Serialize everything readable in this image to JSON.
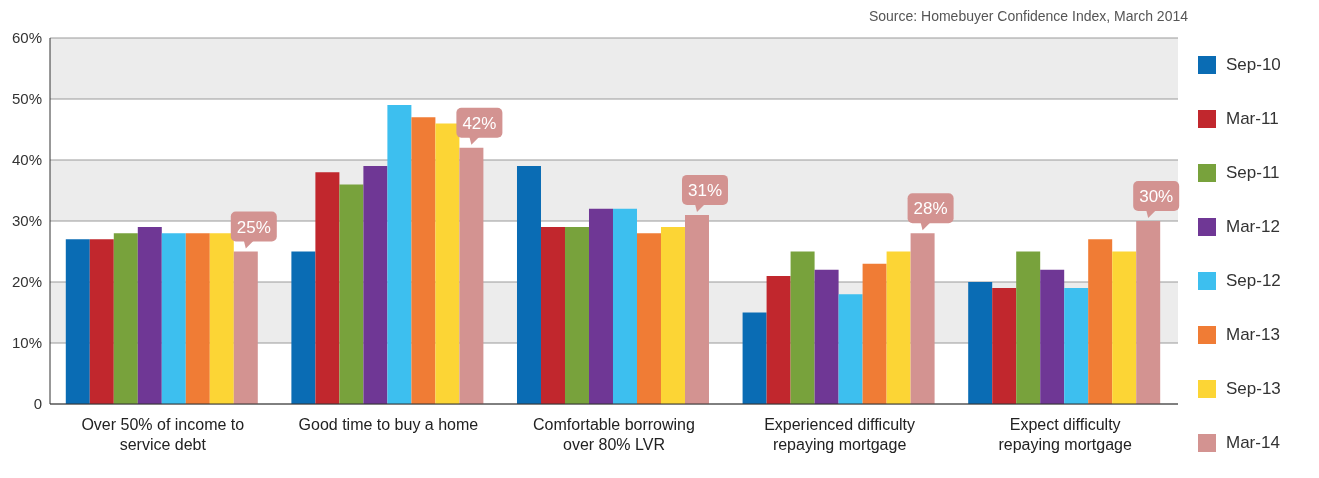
{
  "chart_data": {
    "type": "bar",
    "annotations": [
      "Source: Homebuyer Confidence Index, March 2014"
    ],
    "categories": [
      "Over 50% of income to service debt",
      "Good time to buy a home",
      "Comfortable borrowing over 80% LVR",
      "Experienced difficulty repaying mortgage",
      "Expect difficulty repaying mortgage"
    ],
    "series": [
      {
        "name": "Sep-10",
        "color": "#0a6cb4",
        "values": [
          27,
          25,
          39,
          15,
          20
        ]
      },
      {
        "name": "Mar-11",
        "color": "#c1272d",
        "values": [
          27,
          38,
          29,
          21,
          19
        ]
      },
      {
        "name": "Sep-11",
        "color": "#78a23c",
        "values": [
          28,
          36,
          29,
          25,
          25
        ]
      },
      {
        "name": "Mar-12",
        "color": "#6f3795",
        "values": [
          29,
          39,
          32,
          22,
          22
        ]
      },
      {
        "name": "Sep-12",
        "color": "#3dbfef",
        "values": [
          28,
          49,
          32,
          18,
          19
        ]
      },
      {
        "name": "Mar-13",
        "color": "#f07c35",
        "values": [
          28,
          47,
          28,
          23,
          27
        ]
      },
      {
        "name": "Sep-13",
        "color": "#fcd535",
        "values": [
          28,
          46,
          29,
          25,
          25
        ]
      },
      {
        "name": "Mar-14",
        "color": "#d39391",
        "values": [
          25,
          42,
          31,
          28,
          30
        ],
        "value_labels": [
          "25%",
          "42%",
          "31%",
          "28%",
          "30%"
        ]
      }
    ],
    "ylim": [
      0,
      60
    ],
    "yticks": [
      0,
      {
        "value": 10,
        "label": "10%"
      },
      {
        "value": 20,
        "label": "20%"
      },
      {
        "value": 30,
        "label": "30%"
      },
      {
        "value": 40,
        "label": "40%"
      },
      {
        "value": 50,
        "label": "50%"
      },
      {
        "value": 60,
        "label": "60%"
      }
    ],
    "grid": "y",
    "legend": "right"
  }
}
